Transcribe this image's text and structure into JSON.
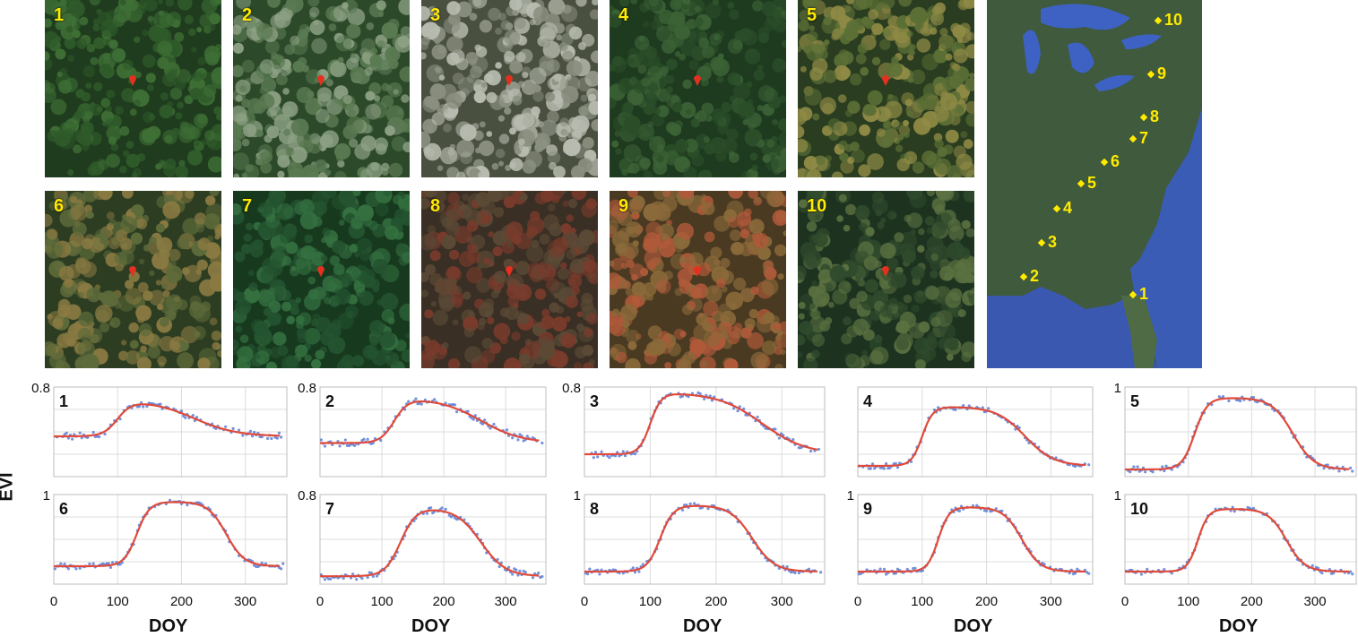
{
  "photos": [
    {
      "label": "1",
      "tone": [
        "#1f3d1e",
        "#2f5a2a",
        "#3e6f35"
      ]
    },
    {
      "label": "2",
      "tone": [
        "#2c4a2a",
        "#5a7a52",
        "#8ca083"
      ]
    },
    {
      "label": "3",
      "tone": [
        "#4a5040",
        "#8a8f80",
        "#b8bcb0"
      ]
    },
    {
      "label": "4",
      "tone": [
        "#1e3a1f",
        "#2b4e29",
        "#3c6336"
      ]
    },
    {
      "label": "5",
      "tone": [
        "#2a3d20",
        "#5b6f36",
        "#8f8a45"
      ]
    },
    {
      "label": "6",
      "tone": [
        "#2d3d22",
        "#5d6a3a",
        "#8a7a42"
      ]
    },
    {
      "label": "7",
      "tone": [
        "#173a1f",
        "#245330",
        "#347040"
      ]
    },
    {
      "label": "8",
      "tone": [
        "#3a2f24",
        "#5b4a36",
        "#7a3b2c"
      ]
    },
    {
      "label": "9",
      "tone": [
        "#4a3a22",
        "#8a6a3a",
        "#b05a3a"
      ]
    },
    {
      "label": "10",
      "tone": [
        "#1d3320",
        "#2f4a2c",
        "#5a7040"
      ]
    }
  ],
  "map": {
    "sites": [
      {
        "label": "1"
      },
      {
        "label": "2"
      },
      {
        "label": "3"
      },
      {
        "label": "4"
      },
      {
        "label": "5"
      },
      {
        "label": "6"
      },
      {
        "label": "7"
      },
      {
        "label": "8"
      },
      {
        "label": "9"
      },
      {
        "label": "10"
      }
    ]
  },
  "y_axis_label": "EVI",
  "x_axis_label": "DOY",
  "chart_data": [
    {
      "type": "scatter",
      "panel": "1",
      "ytop_label": "0.8",
      "xlim": [
        0,
        365
      ],
      "ylim": [
        0,
        0.8
      ],
      "xticks": [],
      "fit": {
        "base": 0.36,
        "peak": 0.68,
        "up": 100,
        "down": 220,
        "k1": 0.09,
        "k2": 0.03,
        "low2": 0.36
      }
    },
    {
      "type": "scatter",
      "panel": "2",
      "ytop_label": "0.8",
      "xlim": [
        0,
        365
      ],
      "ylim": [
        0,
        0.8
      ],
      "xticks": [],
      "fit": {
        "base": 0.3,
        "peak": 0.7,
        "up": 120,
        "down": 260,
        "k1": 0.09,
        "k2": 0.03,
        "low2": 0.3
      }
    },
    {
      "type": "scatter",
      "panel": "3",
      "ytop_label": "0.8",
      "xlim": [
        0,
        365
      ],
      "ylim": [
        0,
        0.8
      ],
      "xticks": [],
      "fit": {
        "base": 0.2,
        "peak": 0.75,
        "up": 100,
        "down": 270,
        "k1": 0.12,
        "k2": 0.03,
        "low2": 0.2
      }
    },
    {
      "type": "scatter",
      "panel": "4",
      "ytop_label": "",
      "xlim": [
        0,
        365
      ],
      "ylim": [
        0,
        1
      ],
      "xticks": [],
      "fit": {
        "base": 0.12,
        "peak": 0.78,
        "up": 100,
        "down": 260,
        "k1": 0.12,
        "k2": 0.045,
        "low2": 0.12
      }
    },
    {
      "type": "scatter",
      "panel": "5",
      "ytop_label": "1",
      "xlim": [
        0,
        365
      ],
      "ylim": [
        0,
        1
      ],
      "xticks": [],
      "fit": {
        "base": 0.08,
        "peak": 0.88,
        "up": 110,
        "down": 265,
        "k1": 0.1,
        "k2": 0.06,
        "low2": 0.08
      }
    },
    {
      "type": "scatter",
      "panel": "6",
      "ytop_label": "1",
      "xlim": [
        0,
        365
      ],
      "ylim": [
        0,
        1
      ],
      "xticks": [
        "0",
        "100",
        "200",
        "300"
      ],
      "fit": {
        "base": 0.2,
        "peak": 0.92,
        "up": 130,
        "down": 270,
        "k1": 0.1,
        "k2": 0.07,
        "low2": 0.2
      }
    },
    {
      "type": "scatter",
      "panel": "7",
      "ytop_label": "0.8",
      "xlim": [
        0,
        365
      ],
      "ylim": [
        0,
        0.8
      ],
      "xticks": [
        "0",
        "100",
        "200",
        "300"
      ],
      "fit": {
        "base": 0.07,
        "peak": 0.68,
        "up": 130,
        "down": 260,
        "k1": 0.08,
        "k2": 0.05,
        "low2": 0.07
      }
    },
    {
      "type": "scatter",
      "panel": "8",
      "ytop_label": "1",
      "xlim": [
        0,
        365
      ],
      "ylim": [
        0,
        1
      ],
      "xticks": [
        "0",
        "100",
        "200",
        "300"
      ],
      "fit": {
        "base": 0.14,
        "peak": 0.88,
        "up": 115,
        "down": 255,
        "k1": 0.1,
        "k2": 0.06,
        "low2": 0.14
      }
    },
    {
      "type": "scatter",
      "panel": "9",
      "ytop_label": "1",
      "xlim": [
        0,
        365
      ],
      "ylim": [
        0,
        1
      ],
      "xticks": [
        "0",
        "100",
        "200",
        "300"
      ],
      "fit": {
        "base": 0.14,
        "peak": 0.86,
        "up": 125,
        "down": 255,
        "k1": 0.12,
        "k2": 0.07,
        "low2": 0.14
      }
    },
    {
      "type": "scatter",
      "panel": "10",
      "ytop_label": "1",
      "xlim": [
        0,
        365
      ],
      "ylim": [
        0,
        1
      ],
      "xticks": [
        "0",
        "100",
        "200",
        "300"
      ],
      "fit": {
        "base": 0.14,
        "peak": 0.84,
        "up": 115,
        "down": 255,
        "k1": 0.12,
        "k2": 0.07,
        "low2": 0.14
      }
    }
  ]
}
